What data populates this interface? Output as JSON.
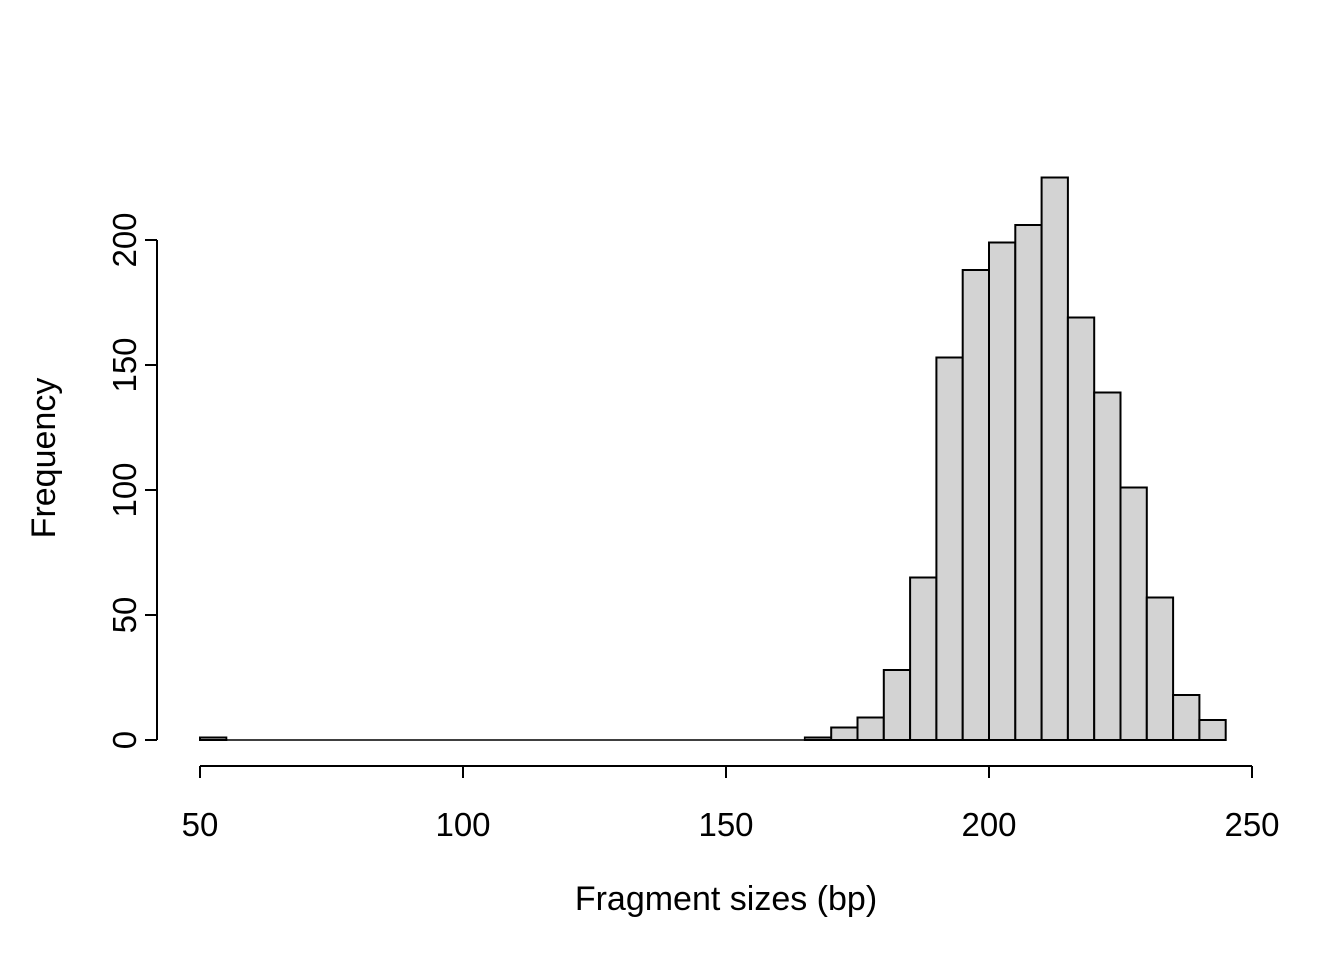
{
  "chart_data": {
    "type": "bar",
    "subtype": "histogram",
    "title": "",
    "xlabel": "Fragment sizes (bp)",
    "ylabel": "Frequency",
    "bin_start": 50,
    "bin_width": 5,
    "counts": [
      1,
      0,
      0,
      0,
      0,
      0,
      0,
      0,
      0,
      0,
      0,
      0,
      0,
      0,
      0,
      0,
      0,
      0,
      0,
      0,
      0,
      0,
      0,
      1,
      5,
      9,
      28,
      65,
      153,
      188,
      199,
      206,
      225,
      169,
      139,
      101,
      57,
      18,
      8
    ],
    "x_ticks": [
      50,
      100,
      150,
      200,
      250
    ],
    "y_ticks": [
      0,
      50,
      100,
      150,
      200
    ],
    "xlim": [
      50,
      250
    ],
    "ylim": [
      0,
      225
    ],
    "grid": "off",
    "legend": "none",
    "bar_fill": "#d3d3d3",
    "bar_stroke": "#000000",
    "axis_color": "#000000",
    "background": "#ffffff"
  }
}
